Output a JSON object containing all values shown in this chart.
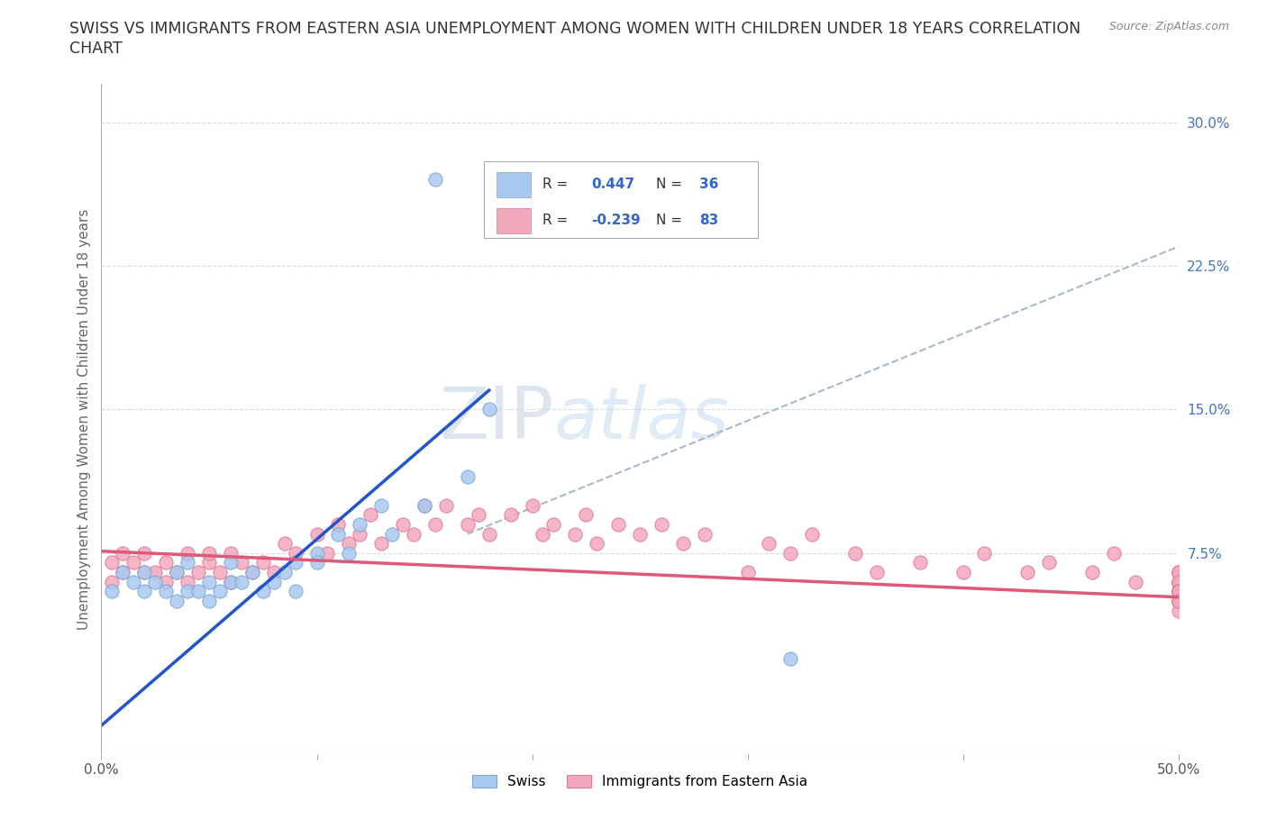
{
  "title_line1": "SWISS VS IMMIGRANTS FROM EASTERN ASIA UNEMPLOYMENT AMONG WOMEN WITH CHILDREN UNDER 18 YEARS CORRELATION",
  "title_line2": "CHART",
  "source": "Source: ZipAtlas.com",
  "ylabel": "Unemployment Among Women with Children Under 18 years",
  "xlim": [
    0.0,
    0.5
  ],
  "ylim": [
    -0.03,
    0.32
  ],
  "yticks_right": [
    0.075,
    0.15,
    0.225,
    0.3
  ],
  "ytick_right_labels": [
    "7.5%",
    "15.0%",
    "22.5%",
    "30.0%"
  ],
  "swiss_color": "#a8c8f0",
  "swiss_edge_color": "#7aaad0",
  "immigrant_color": "#f4a8bc",
  "immigrant_edge_color": "#e07898",
  "swiss_R": "0.447",
  "swiss_N": "36",
  "immigrant_R": "-0.239",
  "immigrant_N": "83",
  "swiss_line_color": "#2255cc",
  "immigrant_line_color": "#e05878",
  "dash_line_color": "#a8b8cc",
  "background_color": "#ffffff",
  "grid_color": "#d8dce4",
  "watermark": "ZIPatlas",
  "watermark_color": "#dde5f0",
  "legend_swiss_label": "Swiss",
  "legend_immigrant_label": "Immigrants from Eastern Asia",
  "swiss_points_x": [
    0.005,
    0.01,
    0.015,
    0.02,
    0.02,
    0.025,
    0.03,
    0.035,
    0.035,
    0.04,
    0.04,
    0.045,
    0.05,
    0.05,
    0.055,
    0.06,
    0.06,
    0.065,
    0.07,
    0.075,
    0.08,
    0.085,
    0.09,
    0.09,
    0.1,
    0.1,
    0.11,
    0.115,
    0.12,
    0.13,
    0.135,
    0.15,
    0.17,
    0.18,
    0.155,
    0.32
  ],
  "swiss_points_y": [
    0.055,
    0.065,
    0.06,
    0.055,
    0.065,
    0.06,
    0.055,
    0.05,
    0.065,
    0.055,
    0.07,
    0.055,
    0.06,
    0.05,
    0.055,
    0.06,
    0.07,
    0.06,
    0.065,
    0.055,
    0.06,
    0.065,
    0.07,
    0.055,
    0.075,
    0.07,
    0.085,
    0.075,
    0.09,
    0.1,
    0.085,
    0.1,
    0.115,
    0.15,
    0.27,
    0.02
  ],
  "immigrant_points_x": [
    0.005,
    0.005,
    0.01,
    0.01,
    0.015,
    0.02,
    0.02,
    0.025,
    0.03,
    0.03,
    0.035,
    0.04,
    0.04,
    0.045,
    0.05,
    0.05,
    0.055,
    0.06,
    0.06,
    0.065,
    0.07,
    0.075,
    0.08,
    0.085,
    0.09,
    0.1,
    0.105,
    0.11,
    0.115,
    0.12,
    0.125,
    0.13,
    0.14,
    0.145,
    0.15,
    0.155,
    0.16,
    0.17,
    0.175,
    0.18,
    0.19,
    0.2,
    0.205,
    0.21,
    0.22,
    0.225,
    0.23,
    0.24,
    0.25,
    0.26,
    0.27,
    0.28,
    0.3,
    0.31,
    0.32,
    0.33,
    0.35,
    0.36,
    0.38,
    0.4,
    0.41,
    0.43,
    0.44,
    0.46,
    0.47,
    0.48,
    0.5,
    0.5,
    0.5,
    0.5,
    0.5,
    0.5,
    0.5,
    0.5,
    0.5,
    0.5,
    0.5,
    0.5,
    0.5,
    0.5,
    0.5,
    0.5,
    0.5
  ],
  "immigrant_points_y": [
    0.06,
    0.07,
    0.065,
    0.075,
    0.07,
    0.065,
    0.075,
    0.065,
    0.06,
    0.07,
    0.065,
    0.06,
    0.075,
    0.065,
    0.07,
    0.075,
    0.065,
    0.06,
    0.075,
    0.07,
    0.065,
    0.07,
    0.065,
    0.08,
    0.075,
    0.085,
    0.075,
    0.09,
    0.08,
    0.085,
    0.095,
    0.08,
    0.09,
    0.085,
    0.1,
    0.09,
    0.1,
    0.09,
    0.095,
    0.085,
    0.095,
    0.1,
    0.085,
    0.09,
    0.085,
    0.095,
    0.08,
    0.09,
    0.085,
    0.09,
    0.08,
    0.085,
    0.065,
    0.08,
    0.075,
    0.085,
    0.075,
    0.065,
    0.07,
    0.065,
    0.075,
    0.065,
    0.07,
    0.065,
    0.075,
    0.06,
    0.055,
    0.06,
    0.065,
    0.06,
    0.05,
    0.065,
    0.055,
    0.06,
    0.065,
    0.045,
    0.055,
    0.06,
    0.05,
    0.055,
    0.05,
    0.055,
    0.05
  ],
  "swiss_line_x0": 0.0,
  "swiss_line_y0": -0.015,
  "swiss_line_x1": 0.18,
  "swiss_line_y1": 0.16,
  "immigrant_line_x0": 0.0,
  "immigrant_line_y0": 0.076,
  "immigrant_line_x1": 0.5,
  "immigrant_line_y1": 0.052,
  "dash_line_x0": 0.17,
  "dash_line_y0": 0.085,
  "dash_line_x1": 0.5,
  "dash_line_y1": 0.235
}
